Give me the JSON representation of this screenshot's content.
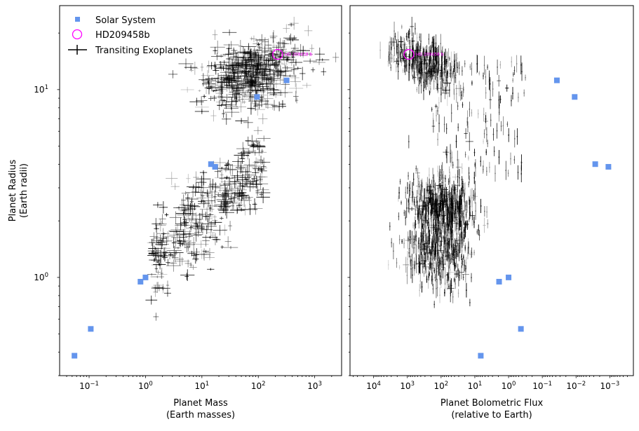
{
  "chart_data": [
    {
      "type": "scatter",
      "panel": "left",
      "xlabel": "Planet Mass",
      "xlabel2": "(Earth masses)",
      "ylabel": "Planet Radius",
      "ylabel2": "(Earth radii)",
      "xscale": "log",
      "yscale": "log",
      "xlim": [
        0.03,
        3000
      ],
      "ylim": [
        0.3,
        28
      ],
      "x_ticks": [
        {
          "v": 0.1,
          "base": "10",
          "exp": "−1"
        },
        {
          "v": 1,
          "base": "10",
          "exp": "0"
        },
        {
          "v": 10,
          "base": "10",
          "exp": "1"
        },
        {
          "v": 100,
          "base": "10",
          "exp": "2"
        },
        {
          "v": 1000,
          "base": "10",
          "exp": "3"
        }
      ],
      "y_ticks": [
        {
          "v": 1,
          "base": "10",
          "exp": "0"
        },
        {
          "v": 10,
          "base": "10",
          "exp": "1"
        }
      ],
      "legend": {
        "position": "top-left",
        "entries": [
          {
            "label": "Solar System",
            "marker": "square",
            "color": "#6495ed"
          },
          {
            "label": "HD209458b",
            "marker": "open-circle",
            "color": "#ff00ff"
          },
          {
            "label": "Transiting Exoplanets",
            "marker": "errorbar",
            "color": "#000000"
          }
        ]
      },
      "solar_system": [
        {
          "x": 0.055,
          "y": 0.383
        },
        {
          "x": 0.107,
          "y": 0.532
        },
        {
          "x": 0.815,
          "y": 0.949
        },
        {
          "x": 1.0,
          "y": 1.0
        },
        {
          "x": 14.5,
          "y": 4.01
        },
        {
          "x": 17.1,
          "y": 3.88
        },
        {
          "x": 95.2,
          "y": 9.14
        },
        {
          "x": 317.8,
          "y": 11.2
        }
      ],
      "highlight": {
        "label": "HD 209458 b",
        "x": 220,
        "y": 15.4,
        "color": "#ff00ff"
      }
    },
    {
      "type": "scatter",
      "panel": "right",
      "xlabel": "Planet Bolometric Flux",
      "xlabel2": "(relative to Earth)",
      "xscale": "log",
      "yscale": "log",
      "x_inverted": true,
      "xlim": [
        50000,
        0.0002
      ],
      "ylim": [
        0.3,
        28
      ],
      "x_ticks": [
        {
          "v": 10000,
          "base": "10",
          "exp": "4"
        },
        {
          "v": 1000,
          "base": "10",
          "exp": "3"
        },
        {
          "v": 100,
          "base": "10",
          "exp": "2"
        },
        {
          "v": 10,
          "base": "10",
          "exp": "1"
        },
        {
          "v": 1,
          "base": "10",
          "exp": "0"
        },
        {
          "v": 0.1,
          "base": "10",
          "exp": "−1"
        },
        {
          "v": 0.01,
          "base": "10",
          "exp": "−2"
        },
        {
          "v": 0.001,
          "base": "10",
          "exp": "−3"
        }
      ],
      "solar_system": [
        {
          "x": 6.67,
          "y": 0.383
        },
        {
          "x": 1.91,
          "y": 0.949
        },
        {
          "x": 1.0,
          "y": 1.0
        },
        {
          "x": 0.431,
          "y": 0.532
        },
        {
          "x": 0.037,
          "y": 11.2
        },
        {
          "x": 0.011,
          "y": 9.14
        },
        {
          "x": 0.0027,
          "y": 4.01
        },
        {
          "x": 0.0011,
          "y": 3.88
        }
      ],
      "highlight": {
        "label": "HD 209458 b",
        "x": 900,
        "y": 15.4,
        "color": "#ff00ff"
      }
    }
  ]
}
